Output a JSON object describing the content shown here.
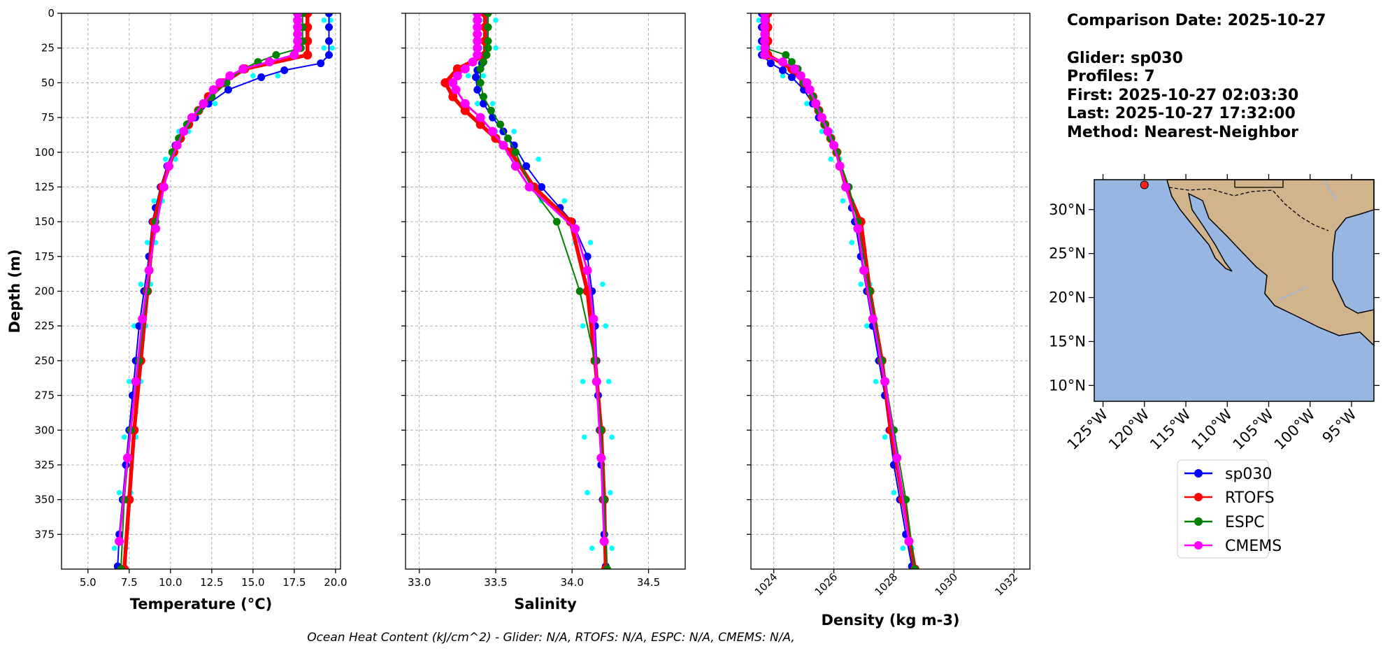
{
  "info": {
    "lines": [
      "Comparison Date: 2025-10-27",
      "Glider: sp030",
      "Profiles: 7",
      "First: 2025-10-27 02:03:30",
      "Last: 2025-10-27 17:32:00",
      "Method: Nearest-Neighbor"
    ]
  },
  "caption": "Ocean Heat Content (kJ/cm^2) - Glider: N/A,  RTOFS: N/A,  ESPC: N/A,  CMEMS: N/A,",
  "chart_data": [
    {
      "type": "profile",
      "xlabel": "Temperature (°C)",
      "ylabel": "Depth (m)",
      "grid": true,
      "xlim": [
        3.4,
        20.3
      ],
      "ylim": [
        400,
        0
      ],
      "xticks": [
        {
          "value": 5,
          "label": "5.0"
        },
        7.5,
        {
          "value": 10,
          "label": "10.0"
        },
        12.5,
        {
          "value": 15,
          "label": "15.0"
        },
        17.5,
        {
          "value": 20,
          "label": "20.0"
        }
      ],
      "yticks": [
        0,
        25,
        50,
        75,
        100,
        125,
        150,
        175,
        200,
        225,
        250,
        275,
        300,
        325,
        350,
        375
      ],
      "points": {
        "color": "#00ffff",
        "y": [
          5,
          25,
          45,
          65,
          85,
          105,
          135,
          165,
          195,
          225,
          265,
          305,
          345,
          385,
          5,
          25,
          45,
          65,
          85,
          105,
          135,
          165,
          195,
          225,
          265,
          305,
          345,
          385
        ],
        "x": [
          19.7,
          19.8,
          16.5,
          12.7,
          11.1,
          10.3,
          9.5,
          9.1,
          8.8,
          8.5,
          8.2,
          7.9,
          7.6,
          7.3,
          19.3,
          19.3,
          15.0,
          12.0,
          10.5,
          9.7,
          9.0,
          8.6,
          8.2,
          7.8,
          7.5,
          7.2,
          6.9,
          6.6
        ]
      },
      "series": [
        {
          "name": "sp030",
          "color": "#0000ff",
          "y": [
            0,
            10,
            20,
            30,
            36,
            41,
            46,
            55,
            65,
            75,
            85,
            95,
            110,
            125,
            140,
            150,
            175,
            200,
            225,
            250,
            275,
            300,
            325,
            350,
            375,
            398
          ],
          "x": [
            19.6,
            19.6,
            19.6,
            19.6,
            19.1,
            16.9,
            15.5,
            13.5,
            12.3,
            11.5,
            10.8,
            10.3,
            9.8,
            9.4,
            9.1,
            8.9,
            8.7,
            8.4,
            8.1,
            7.9,
            7.7,
            7.5,
            7.3,
            7.1,
            6.9,
            6.8
          ]
        },
        {
          "name": "RTOFS",
          "color": "#ff0000",
          "y": [
            0,
            10,
            20,
            30,
            40,
            50,
            60,
            70,
            80,
            90,
            100,
            125,
            150,
            200,
            250,
            300,
            350,
            400
          ],
          "x": [
            18.3,
            18.3,
            18.3,
            18.3,
            14.5,
            13.2,
            12.3,
            11.7,
            11.1,
            10.6,
            10.2,
            9.5,
            9.0,
            8.6,
            8.2,
            7.8,
            7.5,
            7.2
          ]
        },
        {
          "name": "ESPC",
          "color": "#008000",
          "y": [
            0,
            10,
            20,
            25,
            30,
            35,
            40,
            50,
            60,
            70,
            80,
            90,
            100,
            125,
            150,
            200,
            250,
            300,
            350,
            400
          ],
          "x": [
            18.0,
            18.0,
            18.0,
            17.9,
            16.4,
            15.3,
            14.4,
            13.4,
            12.5,
            11.7,
            11.0,
            10.5,
            10.1,
            9.6,
            9.1,
            8.6,
            8.1,
            7.6,
            7.2,
            7.0
          ]
        },
        {
          "name": "CMEMS",
          "color": "#ff00ff",
          "y": [
            0,
            5,
            10,
            15,
            20,
            25,
            30,
            35,
            40,
            45,
            50,
            55,
            65,
            75,
            85,
            95,
            110,
            125,
            155,
            185,
            220,
            265,
            320,
            380
          ],
          "x": [
            17.7,
            17.7,
            17.7,
            17.7,
            17.7,
            17.7,
            17.5,
            16.0,
            14.4,
            13.6,
            13.0,
            12.6,
            12.0,
            11.3,
            10.8,
            10.4,
            9.9,
            9.6,
            9.1,
            8.7,
            8.3,
            7.9,
            7.4,
            6.9
          ]
        }
      ]
    },
    {
      "type": "profile",
      "xlabel": "Salinity",
      "grid": true,
      "xlim": [
        32.91,
        34.74
      ],
      "ylim": [
        400,
        0
      ],
      "xticks": [
        {
          "value": 33,
          "label": "33.0"
        },
        33.5,
        {
          "value": 34,
          "label": "34.0"
        },
        34.5
      ],
      "yticks": [
        0,
        25,
        50,
        75,
        100,
        125,
        150,
        175,
        200,
        225,
        250,
        275,
        300,
        325,
        350,
        375
      ],
      "points": {
        "color": "#00ffff",
        "y": [
          5,
          25,
          45,
          65,
          85,
          105,
          135,
          165,
          195,
          225,
          265,
          305,
          345,
          385,
          5,
          25,
          45,
          65,
          85,
          105,
          135,
          165,
          195,
          225,
          265,
          305,
          345,
          385
        ],
        "x": [
          33.5,
          33.5,
          33.42,
          33.48,
          33.62,
          33.78,
          33.95,
          34.12,
          34.2,
          34.22,
          34.24,
          34.26,
          34.25,
          34.26,
          33.4,
          33.4,
          33.32,
          33.38,
          33.5,
          33.62,
          33.8,
          34.02,
          34.1,
          34.07,
          34.07,
          34.08,
          34.1,
          34.13
        ]
      },
      "series": [
        {
          "name": "sp030",
          "color": "#0000ff",
          "y": [
            0,
            10,
            20,
            30,
            36,
            41,
            46,
            55,
            65,
            75,
            85,
            95,
            110,
            125,
            140,
            150,
            175,
            200,
            225,
            250,
            275,
            300,
            325,
            350,
            375,
            398
          ],
          "x": [
            33.44,
            33.44,
            33.44,
            33.44,
            33.41,
            33.38,
            33.37,
            33.38,
            33.42,
            33.48,
            33.55,
            33.62,
            33.7,
            33.8,
            33.92,
            34.0,
            34.1,
            34.13,
            34.15,
            34.16,
            34.17,
            34.18,
            34.19,
            34.2,
            34.21,
            34.22
          ]
        },
        {
          "name": "RTOFS",
          "color": "#ff0000",
          "y": [
            0,
            10,
            20,
            30,
            40,
            50,
            60,
            70,
            80,
            90,
            100,
            125,
            150,
            200,
            250,
            300,
            350,
            400
          ],
          "x": [
            33.43,
            33.43,
            33.43,
            33.43,
            33.25,
            33.17,
            33.22,
            33.3,
            33.4,
            33.5,
            33.6,
            33.75,
            33.99,
            34.1,
            34.15,
            34.19,
            34.21,
            34.22
          ]
        },
        {
          "name": "ESPC",
          "color": "#008000",
          "y": [
            0,
            10,
            20,
            25,
            30,
            35,
            40,
            50,
            60,
            70,
            80,
            90,
            100,
            125,
            150,
            200,
            250,
            300,
            350,
            400
          ],
          "x": [
            33.45,
            33.45,
            33.45,
            33.45,
            33.44,
            33.42,
            33.4,
            33.4,
            33.42,
            33.47,
            33.53,
            33.58,
            33.63,
            33.73,
            33.9,
            34.05,
            34.15,
            34.19,
            34.21,
            34.23
          ]
        },
        {
          "name": "CMEMS",
          "color": "#ff00ff",
          "y": [
            0,
            5,
            10,
            15,
            20,
            25,
            30,
            35,
            40,
            45,
            50,
            55,
            65,
            75,
            85,
            95,
            110,
            125,
            155,
            185,
            220,
            265,
            320,
            380
          ],
          "x": [
            33.38,
            33.38,
            33.38,
            33.38,
            33.38,
            33.38,
            33.38,
            33.35,
            33.3,
            33.25,
            33.22,
            33.24,
            33.3,
            33.4,
            33.48,
            33.55,
            33.63,
            33.72,
            34.02,
            34.1,
            34.14,
            34.16,
            34.19,
            34.21
          ]
        }
      ]
    },
    {
      "type": "profile",
      "xlabel": "Density (kg m-3)",
      "grid": true,
      "xtick_rotation": 45,
      "xlim": [
        1023.24,
        1032.53
      ],
      "ylim": [
        400,
        0
      ],
      "xticks": [
        1024,
        1026,
        1028,
        1030,
        1032
      ],
      "yticks": [
        0,
        25,
        50,
        75,
        100,
        125,
        150,
        175,
        200,
        225,
        250,
        275,
        300,
        325,
        350,
        375
      ],
      "points": {
        "color": "#00ffff",
        "y": [
          5,
          25,
          45,
          65,
          85,
          105,
          135,
          165,
          195,
          225,
          265,
          305,
          345,
          385,
          5,
          25,
          45,
          65,
          85,
          105,
          135,
          165,
          195,
          225,
          265,
          305,
          345,
          385
        ],
        "x": [
          1023.8,
          1023.8,
          1024.8,
          1025.4,
          1025.9,
          1026.2,
          1026.6,
          1026.9,
          1027.2,
          1027.4,
          1027.7,
          1028.0,
          1028.3,
          1028.6,
          1023.5,
          1023.5,
          1024.3,
          1025.1,
          1025.6,
          1025.9,
          1026.3,
          1026.6,
          1026.9,
          1027.1,
          1027.4,
          1027.7,
          1028.0,
          1028.3
        ]
      },
      "series": [
        {
          "name": "sp030",
          "color": "#0000ff",
          "y": [
            0,
            10,
            20,
            30,
            36,
            41,
            46,
            55,
            65,
            75,
            85,
            95,
            110,
            125,
            140,
            150,
            175,
            200,
            225,
            250,
            275,
            300,
            325,
            350,
            375,
            398
          ],
          "x": [
            1023.6,
            1023.6,
            1023.6,
            1023.6,
            1023.9,
            1024.3,
            1024.6,
            1025.0,
            1025.3,
            1025.5,
            1025.8,
            1026.0,
            1026.2,
            1026.4,
            1026.6,
            1026.7,
            1026.9,
            1027.1,
            1027.3,
            1027.5,
            1027.7,
            1027.85,
            1028.0,
            1028.2,
            1028.4,
            1028.6
          ]
        },
        {
          "name": "RTOFS",
          "color": "#ff0000",
          "y": [
            0,
            10,
            20,
            30,
            40,
            50,
            60,
            70,
            80,
            90,
            100,
            125,
            150,
            200,
            250,
            300,
            350,
            400
          ],
          "x": [
            1023.8,
            1023.8,
            1023.8,
            1023.8,
            1024.6,
            1025.0,
            1025.3,
            1025.5,
            1025.7,
            1025.9,
            1026.1,
            1026.4,
            1026.9,
            1027.2,
            1027.6,
            1027.9,
            1028.3,
            1028.7
          ]
        },
        {
          "name": "ESPC",
          "color": "#008000",
          "y": [
            0,
            10,
            20,
            25,
            30,
            35,
            40,
            50,
            60,
            70,
            80,
            90,
            100,
            125,
            150,
            200,
            250,
            300,
            350,
            400
          ],
          "x": [
            1023.7,
            1023.7,
            1023.7,
            1023.7,
            1024.4,
            1024.6,
            1024.8,
            1025.0,
            1025.3,
            1025.5,
            1025.7,
            1025.9,
            1026.1,
            1026.5,
            1026.8,
            1027.2,
            1027.6,
            1028.0,
            1028.4,
            1028.7
          ]
        },
        {
          "name": "CMEMS",
          "color": "#ff00ff",
          "y": [
            0,
            5,
            10,
            15,
            20,
            25,
            30,
            35,
            40,
            45,
            50,
            55,
            65,
            75,
            85,
            95,
            110,
            125,
            155,
            185,
            220,
            265,
            320,
            380
          ],
          "x": [
            1023.7,
            1023.7,
            1023.7,
            1023.7,
            1023.7,
            1023.7,
            1023.7,
            1024.3,
            1024.7,
            1024.9,
            1025.1,
            1025.2,
            1025.4,
            1025.6,
            1025.8,
            1026.0,
            1026.2,
            1026.4,
            1026.8,
            1027.0,
            1027.3,
            1027.7,
            1028.1,
            1028.5
          ]
        }
      ]
    },
    {
      "type": "map",
      "xtick_rotation": 45,
      "xlim": [
        -126.06,
        -92.3
      ],
      "ylim": [
        8.2,
        33.4
      ],
      "xticks": [
        {
          "value": -125,
          "label": "125°W"
        },
        {
          "value": -120,
          "label": "120°W"
        },
        {
          "value": -115,
          "label": "115°W"
        },
        {
          "value": -110,
          "label": "110°W"
        },
        {
          "value": -105,
          "label": "105°W"
        },
        {
          "value": -100,
          "label": "100°W"
        },
        {
          "value": -95,
          "label": "95°W"
        }
      ],
      "yticks": [
        {
          "value": 10,
          "label": "10°N"
        },
        {
          "value": 15,
          "label": "15°N"
        },
        {
          "value": 20,
          "label": "20°N"
        },
        {
          "value": 25,
          "label": "25°N"
        },
        {
          "value": 30,
          "label": "30°N"
        }
      ],
      "series": [
        {
          "color": "#ff2020",
          "x": [
            -120
          ],
          "y": [
            32.8
          ]
        }
      ]
    }
  ]
}
